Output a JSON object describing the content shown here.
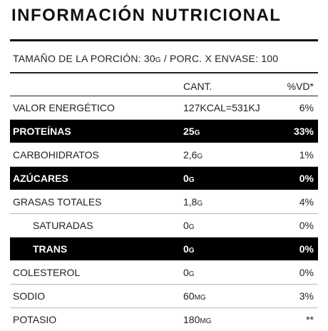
{
  "title": "INFORMACIÓN NUTRICIONAL",
  "serving": "TAMAÑO DE LA PORCIÓN: 30g / PORC. X ENVASE: 100",
  "table": {
    "header": [
      "CANT.",
      "%VD*"
    ],
    "rows": [
      [
        "VALOR ENERGÉTICO",
        "127KCAL=531KJ",
        "6%"
      ],
      [
        "PROTEÍNAS",
        "25g",
        "33%"
      ],
      [
        "CARBOHIDRATOS",
        "2,6g",
        "1%"
      ],
      [
        "AZÚCARES",
        "0g",
        "0%"
      ],
      [
        "GRASAS TOTALES",
        "1,8g",
        "4%"
      ],
      [
        "SATURADAS",
        "0g",
        "0%"
      ],
      [
        "TRANS",
        "0g",
        "0%"
      ],
      [
        "COLESTEROL",
        "0g",
        "0%"
      ],
      [
        "SODIO",
        "60mg",
        "3%"
      ],
      [
        "POTASIO",
        "180mg",
        "**"
      ]
    ]
  }
}
